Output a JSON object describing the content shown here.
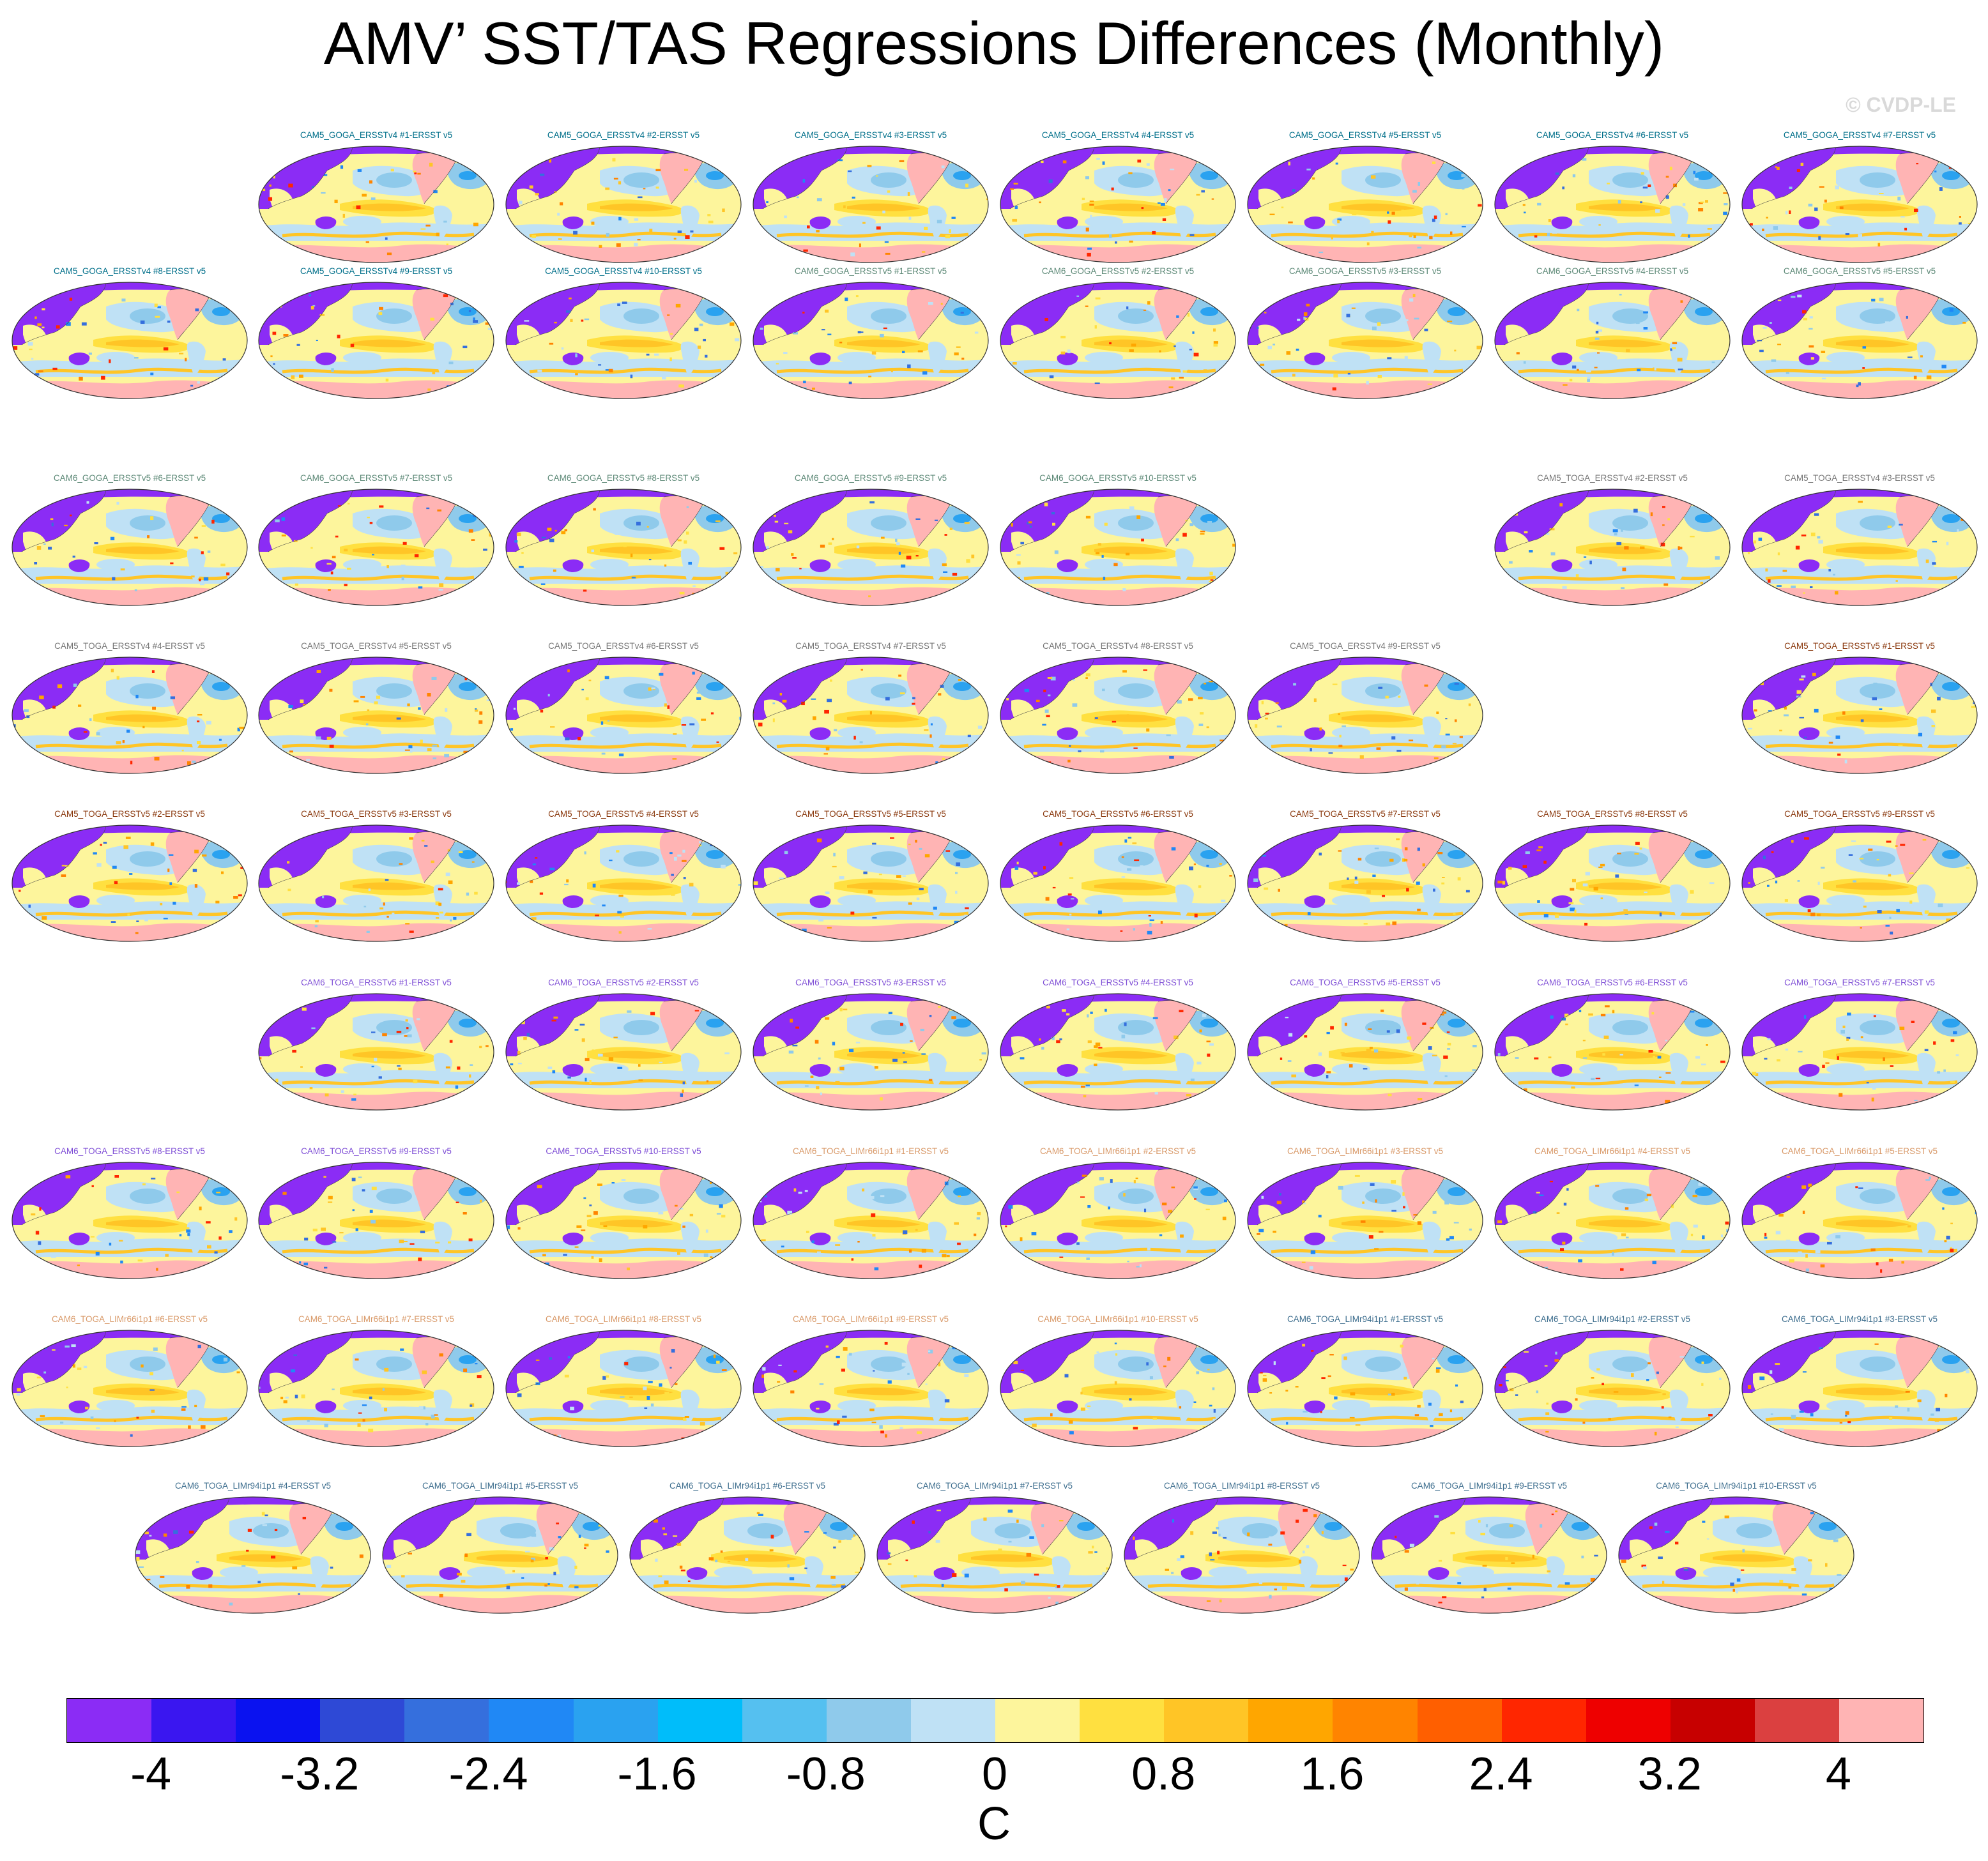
{
  "title": "AMV’ SST/TAS Regressions Differences (Monthly)",
  "watermark": "© CVDP-LE",
  "units_label": "C",
  "legend_title": "C",
  "chart_data": {
    "type": "heatmap",
    "title": "AMV’ SST/TAS Regressions Differences (Monthly)",
    "units": "C",
    "colorbar": {
      "min": -4.4,
      "max": 4.4,
      "interval": 0.4,
      "ticks": [
        "-4",
        "-3.2",
        "-2.4",
        "-1.6",
        "-0.8",
        "0",
        "0.8",
        "1.6",
        "2.4",
        "3.2",
        "4"
      ],
      "colors": [
        "#8b2cf5",
        "#3a16f0",
        "#0a12f0",
        "#2e49d6",
        "#356fdd",
        "#2088f5",
        "#2aa2f0",
        "#00bdfa",
        "#55c0f0",
        "#8fcaeb",
        "#bfe1f5",
        "#fdf59c",
        "#ffe040",
        "#ffc526",
        "#ffa600",
        "#ff8400",
        "#ff5f00",
        "#ff2600",
        "#ee0000",
        "#c70000",
        "#db4040",
        "#ffb4b4"
      ]
    },
    "series": [
      {
        "name": "CAM5_GOGA_ERSSTv4 #1-ERSST v5",
        "color": "#006f8a"
      },
      {
        "name": "CAM5_GOGA_ERSSTv4 #2-ERSST v5",
        "color": "#006f8a"
      },
      {
        "name": "CAM5_GOGA_ERSSTv4 #3-ERSST v5",
        "color": "#006f8a"
      },
      {
        "name": "CAM5_GOGA_ERSSTv4 #4-ERSST v5",
        "color": "#006f8a"
      },
      {
        "name": "CAM5_GOGA_ERSSTv4 #5-ERSST v5",
        "color": "#006f8a"
      },
      {
        "name": "CAM5_GOGA_ERSSTv4 #6-ERSST v5",
        "color": "#006f8a"
      },
      {
        "name": "CAM5_GOGA_ERSSTv4 #7-ERSST v5",
        "color": "#006f8a"
      },
      {
        "name": "CAM5_GOGA_ERSSTv4 #8-ERSST v5",
        "color": "#006f8a"
      },
      {
        "name": "CAM5_GOGA_ERSSTv4 #9-ERSST v5",
        "color": "#006f8a"
      },
      {
        "name": "CAM5_GOGA_ERSSTv4 #10-ERSST v5",
        "color": "#006f8a"
      },
      {
        "name": "CAM6_GOGA_ERSSTv5 #1-ERSST v5",
        "color": "#5e8a78"
      },
      {
        "name": "CAM6_GOGA_ERSSTv5 #2-ERSST v5",
        "color": "#5e8a78"
      },
      {
        "name": "CAM6_GOGA_ERSSTv5 #3-ERSST v5",
        "color": "#5e8a78"
      },
      {
        "name": "CAM6_GOGA_ERSSTv5 #4-ERSST v5",
        "color": "#5e8a78"
      },
      {
        "name": "CAM6_GOGA_ERSSTv5 #5-ERSST v5",
        "color": "#5e8a78"
      },
      {
        "name": "CAM6_GOGA_ERSSTv5 #6-ERSST v5",
        "color": "#5e8a78"
      },
      {
        "name": "CAM6_GOGA_ERSSTv5 #7-ERSST v5",
        "color": "#5e8a78"
      },
      {
        "name": "CAM6_GOGA_ERSSTv5 #8-ERSST v5",
        "color": "#5e8a78"
      },
      {
        "name": "CAM6_GOGA_ERSSTv5 #9-ERSST v5",
        "color": "#5e8a78"
      },
      {
        "name": "CAM6_GOGA_ERSSTv5 #10-ERSST v5",
        "color": "#5e8a78"
      },
      {
        "name": "CAM5_TOGA_ERSSTv4 #2-ERSST v5",
        "color": "#777777"
      },
      {
        "name": "CAM5_TOGA_ERSSTv4 #3-ERSST v5",
        "color": "#777777"
      },
      {
        "name": "CAM5_TOGA_ERSSTv4 #4-ERSST v5",
        "color": "#777777"
      },
      {
        "name": "CAM5_TOGA_ERSSTv4 #5-ERSST v5",
        "color": "#777777"
      },
      {
        "name": "CAM5_TOGA_ERSSTv4 #6-ERSST v5",
        "color": "#777777"
      },
      {
        "name": "CAM5_TOGA_ERSSTv4 #7-ERSST v5",
        "color": "#777777"
      },
      {
        "name": "CAM5_TOGA_ERSSTv4 #8-ERSST v5",
        "color": "#777777"
      },
      {
        "name": "CAM5_TOGA_ERSSTv4 #9-ERSST v5",
        "color": "#777777"
      },
      {
        "name": "CAM5_TOGA_ERSSTv5 #1-ERSST v5",
        "color": "#8b3a0f"
      },
      {
        "name": "CAM5_TOGA_ERSSTv5 #2-ERSST v5",
        "color": "#8b3a0f"
      },
      {
        "name": "CAM5_TOGA_ERSSTv5 #3-ERSST v5",
        "color": "#8b3a0f"
      },
      {
        "name": "CAM5_TOGA_ERSSTv5 #4-ERSST v5",
        "color": "#8b3a0f"
      },
      {
        "name": "CAM5_TOGA_ERSSTv5 #5-ERSST v5",
        "color": "#8b3a0f"
      },
      {
        "name": "CAM5_TOGA_ERSSTv5 #6-ERSST v5",
        "color": "#8b3a0f"
      },
      {
        "name": "CAM5_TOGA_ERSSTv5 #7-ERSST v5",
        "color": "#8b3a0f"
      },
      {
        "name": "CAM5_TOGA_ERSSTv5 #8-ERSST v5",
        "color": "#8b3a0f"
      },
      {
        "name": "CAM5_TOGA_ERSSTv5 #9-ERSST v5",
        "color": "#8b3a0f"
      },
      {
        "name": "CAM6_TOGA_ERSSTv5 #1-ERSST v5",
        "color": "#7f4fd6"
      },
      {
        "name": "CAM6_TOGA_ERSSTv5 #2-ERSST v5",
        "color": "#7f4fd6"
      },
      {
        "name": "CAM6_TOGA_ERSSTv5 #3-ERSST v5",
        "color": "#7f4fd6"
      },
      {
        "name": "CAM6_TOGA_ERSSTv5 #4-ERSST v5",
        "color": "#7f4fd6"
      },
      {
        "name": "CAM6_TOGA_ERSSTv5 #5-ERSST v5",
        "color": "#7f4fd6"
      },
      {
        "name": "CAM6_TOGA_ERSSTv5 #6-ERSST v5",
        "color": "#7f4fd6"
      },
      {
        "name": "CAM6_TOGA_ERSSTv5 #7-ERSST v5",
        "color": "#7f4fd6"
      },
      {
        "name": "CAM6_TOGA_ERSSTv5 #8-ERSST v5",
        "color": "#7f4fd6"
      },
      {
        "name": "CAM6_TOGA_ERSSTv5 #9-ERSST v5",
        "color": "#7f4fd6"
      },
      {
        "name": "CAM6_TOGA_ERSSTv5 #10-ERSST v5",
        "color": "#7f4fd6"
      },
      {
        "name": "CAM6_TOGA_LIMr66i1p1 #1-ERSST v5",
        "color": "#d99a6a"
      },
      {
        "name": "CAM6_TOGA_LIMr66i1p1 #2-ERSST v5",
        "color": "#d99a6a"
      },
      {
        "name": "CAM6_TOGA_LIMr66i1p1 #3-ERSST v5",
        "color": "#d99a6a"
      },
      {
        "name": "CAM6_TOGA_LIMr66i1p1 #4-ERSST v5",
        "color": "#d99a6a"
      },
      {
        "name": "CAM6_TOGA_LIMr66i1p1 #5-ERSST v5",
        "color": "#d99a6a"
      },
      {
        "name": "CAM6_TOGA_LIMr66i1p1 #6-ERSST v5",
        "color": "#d99a6a"
      },
      {
        "name": "CAM6_TOGA_LIMr66i1p1 #7-ERSST v5",
        "color": "#d99a6a"
      },
      {
        "name": "CAM6_TOGA_LIMr66i1p1 #8-ERSST v5",
        "color": "#d99a6a"
      },
      {
        "name": "CAM6_TOGA_LIMr66i1p1 #9-ERSST v5",
        "color": "#d99a6a"
      },
      {
        "name": "CAM6_TOGA_LIMr66i1p1 #10-ERSST v5",
        "color": "#d99a6a"
      },
      {
        "name": "CAM6_TOGA_LIMr94i1p1 #1-ERSST v5",
        "color": "#3f6f8f"
      },
      {
        "name": "CAM6_TOGA_LIMr94i1p1 #2-ERSST v5",
        "color": "#3f6f8f"
      },
      {
        "name": "CAM6_TOGA_LIMr94i1p1 #3-ERSST v5",
        "color": "#3f6f8f"
      },
      {
        "name": "CAM6_TOGA_LIMr94i1p1 #4-ERSST v5",
        "color": "#3f6f8f"
      },
      {
        "name": "CAM6_TOGA_LIMr94i1p1 #5-ERSST v5",
        "color": "#3f6f8f"
      },
      {
        "name": "CAM6_TOGA_LIMr94i1p1 #6-ERSST v5",
        "color": "#3f6f8f"
      },
      {
        "name": "CAM6_TOGA_LIMr94i1p1 #7-ERSST v5",
        "color": "#3f6f8f"
      },
      {
        "name": "CAM6_TOGA_LIMr94i1p1 #8-ERSST v5",
        "color": "#3f6f8f"
      },
      {
        "name": "CAM6_TOGA_LIMr94i1p1 #9-ERSST v5",
        "color": "#3f6f8f"
      },
      {
        "name": "CAM6_TOGA_LIMr94i1p1 #10-ERSST v5",
        "color": "#3f6f8f"
      }
    ]
  }
}
